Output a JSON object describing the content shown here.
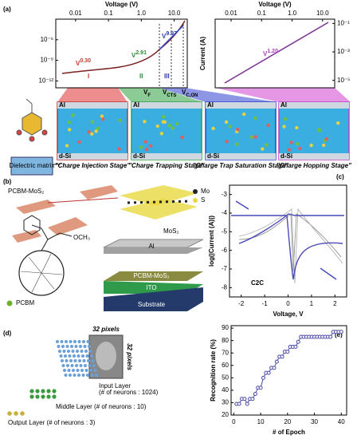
{
  "panel_labels": [
    "(a)",
    "(b)",
    "(c)",
    "(d)",
    "(e)"
  ],
  "panel_a": {
    "electrode_top": "Al",
    "electrode_bottom": "d-Si",
    "dielectric": "Dielectric matrix",
    "stage_captions": [
      "\"Charge Injection Stage\"",
      "\"Charge Trapping Stage\"",
      "\"Charge Trap Saturation Stage\"",
      "\"Charge Hopping Stage\""
    ]
  },
  "panel_b": {
    "composite": "PCBM-MoS₂",
    "atoms": [
      "Mo",
      "S"
    ],
    "crystal": "MoS₂",
    "group": "OCH₃",
    "molecule": "PCBM",
    "layers": [
      "Al",
      "PCBM-MoS₂",
      "ITO",
      "Substrate"
    ]
  },
  "panel_d": {
    "pixels_top": "32 pixels",
    "pixels_side": "32 pixels",
    "layers": [
      [
        "Input Layer",
        "(# of neurons : 1024)"
      ],
      [
        "Middle Layer (# of neurons : 10)"
      ],
      [
        "Output Layer (# of neurons : 3)"
      ]
    ]
  },
  "chart_data": [
    {
      "type": "line",
      "xlabel": "Voltage (V)",
      "xscale": "log",
      "yscale": "log",
      "xlim": [
        0.0025,
        25
      ],
      "ylim": [
        1e-13,
        0.001
      ],
      "xticks": [
        0.01,
        0.1,
        {
          "value": 1,
          "label": "1.0"
        },
        {
          "value": 10,
          "label": "10.0"
        }
      ],
      "yticks": [
        {
          "value": 1e-06,
          "label": "10⁻⁶"
        },
        {
          "value": 1e-09,
          "label": "10⁻⁹"
        },
        {
          "value": 1e-12,
          "label": "10⁻¹²"
        }
      ],
      "annotations": [
        {
          "text": "V",
          "sup": "0.30",
          "color": "#c0392b"
        },
        {
          "text": "V",
          "sup": "2.91",
          "color": "#2e8b3a"
        },
        {
          "text": "V",
          "sup": "9.97",
          "color": "#2b3aa8"
        },
        {
          "text": "I",
          "color": "#c0392b"
        },
        {
          "text": "II",
          "color": "#2e8b3a"
        },
        {
          "text": "III",
          "color": "#2b3aa8"
        },
        {
          "text": "V",
          "sub": "F",
          "color": "#000000"
        },
        {
          "text": "V",
          "sub": "CTS",
          "color": "#000000"
        },
        {
          "text": "V",
          "sub": "C,ON",
          "color": "#000000"
        }
      ]
    },
    {
      "type": "line",
      "xlabel": "Voltage (V)",
      "ylabel": "Current (A)",
      "xscale": "log",
      "yscale": "log",
      "xlim": [
        0.003,
        25
      ],
      "ylim": [
        3e-06,
        0.2
      ],
      "xticks": [
        0.01,
        0.1,
        {
          "value": 1,
          "label": "1.0"
        },
        {
          "value": 10,
          "label": "10.0"
        }
      ],
      "yticks": [
        {
          "value": 0.1,
          "label": "10⁻¹"
        },
        {
          "value": 0.001,
          "label": "10⁻³"
        },
        {
          "value": 1e-05,
          "label": "10⁻⁵"
        }
      ],
      "annotations": [
        {
          "text": "V",
          "sup": "1.20",
          "color": "#b040c0"
        }
      ]
    },
    {
      "type": "line",
      "xlabel": "Voltage, V",
      "ylabel": "log(|Current (A)|)",
      "xlim": [
        -2.5,
        2.5
      ],
      "ylim": [
        -8.5,
        -2.5
      ],
      "xticks": [
        -2,
        -1,
        0,
        1,
        2
      ],
      "yticks": [
        -3,
        -4,
        -5,
        -6,
        -7,
        -8
      ],
      "annotations": [
        {
          "text": "C2C",
          "color": "#000000"
        }
      ]
    },
    {
      "type": "line",
      "xlabel": "# of Epoch",
      "ylabel": "Recognition rate (%)",
      "xlim": [
        -1,
        42
      ],
      "ylim": [
        20,
        92
      ],
      "xticks": [
        0,
        10,
        20,
        30,
        40
      ],
      "yticks": [
        20,
        30,
        40,
        50,
        60,
        70,
        80,
        90
      ],
      "color": "#4a4aa8",
      "x": [
        1,
        2,
        3,
        4,
        5,
        6,
        7,
        8,
        9,
        10,
        11,
        12,
        13,
        14,
        15,
        16,
        17,
        18,
        19,
        20,
        21,
        22,
        23,
        24,
        25,
        26,
        27,
        28,
        29,
        30,
        31,
        32,
        33,
        34,
        35,
        36,
        37,
        38,
        39,
        40
      ],
      "values": [
        29,
        29,
        33,
        33,
        29,
        33,
        33,
        37,
        42,
        42,
        50,
        54,
        54,
        58,
        58,
        63,
        67,
        67,
        71,
        71,
        75,
        75,
        75,
        79,
        83,
        83,
        83,
        83,
        83,
        83,
        83,
        83,
        83,
        83,
        83,
        83,
        87,
        87,
        87,
        87
      ]
    }
  ]
}
